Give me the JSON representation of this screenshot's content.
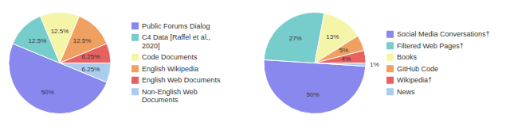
{
  "chart_data": [
    {
      "type": "pie",
      "categories": [
        "Public Forums Dialog",
        "C4 Data [Raffel et al.,\n2020]",
        "Code Documents",
        "English Wikipedia",
        "English Web Documents",
        "Non-English Web\nDocuments"
      ],
      "values": [
        50,
        12.5,
        12.5,
        12.5,
        6.25,
        6.25
      ],
      "value_labels": [
        "50%",
        "12.5%",
        "12.5%",
        "12.5%",
        "6.25%",
        "6.25%"
      ],
      "colors": [
        "#8888EE",
        "#77CCCC",
        "#F5F5AA",
        "#F0A060",
        "#E86060",
        "#AACCEE"
      ],
      "data_labels": true,
      "legend": "right"
    },
    {
      "type": "pie",
      "categories": [
        "Social Media Conversations†",
        "Filtered Web Pages†",
        "Books",
        "GitHub Code",
        "Wikipedia†",
        "News"
      ],
      "values": [
        50,
        27,
        13,
        5,
        4,
        1
      ],
      "value_labels": [
        "50%",
        "27%",
        "13%",
        "5%",
        "4%",
        "1%"
      ],
      "colors": [
        "#8888EE",
        "#77CCCC",
        "#F5F5AA",
        "#F0A060",
        "#E86060",
        "#AACCEE"
      ],
      "data_labels": true,
      "legend": "right"
    }
  ]
}
